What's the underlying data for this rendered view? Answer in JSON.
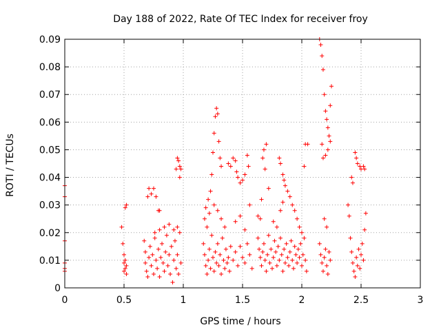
{
  "chart_data": {
    "type": "scatter",
    "title": "Day 188 of 2022, Rate Of TEC Index for receiver froy",
    "xlabel": "GPS time / hours",
    "ylabel": "ROTI / TECUs",
    "xlim": [
      0,
      3
    ],
    "ylim": [
      0,
      0.09
    ],
    "x_ticks": [
      "0",
      "0.5",
      "1",
      "1.5",
      "2",
      "2.5",
      "3"
    ],
    "y_ticks": [
      "0",
      "0.01",
      "0.02",
      "0.03",
      "0.04",
      "0.05",
      "0.06",
      "0.07",
      "0.08",
      "0.09"
    ],
    "grid": true,
    "marker": "plus",
    "color": "#ff0000",
    "series": [
      {
        "points": [
          [
            0.0,
            0.037
          ],
          [
            0.0,
            0.033
          ],
          [
            0.0,
            0.017
          ],
          [
            0.0,
            0.009
          ],
          [
            0.0,
            0.007
          ],
          [
            0.0,
            0.006
          ],
          [
            0.48,
            0.022
          ],
          [
            0.49,
            0.016
          ],
          [
            0.5,
            0.012
          ],
          [
            0.5,
            0.009
          ],
          [
            0.51,
            0.007
          ],
          [
            0.5,
            0.006
          ],
          [
            0.52,
            0.005
          ],
          [
            0.51,
            0.01
          ],
          [
            0.52,
            0.008
          ],
          [
            0.52,
            0.03
          ],
          [
            0.51,
            0.029
          ],
          [
            0.67,
            0.017
          ],
          [
            0.68,
            0.013
          ],
          [
            0.68,
            0.009
          ],
          [
            0.69,
            0.006
          ],
          [
            0.7,
            0.004
          ],
          [
            0.71,
            0.011
          ],
          [
            0.72,
            0.015
          ],
          [
            0.73,
            0.008
          ],
          [
            0.74,
            0.012
          ],
          [
            0.75,
            0.005
          ],
          [
            0.76,
            0.018
          ],
          [
            0.77,
            0.01
          ],
          [
            0.78,
            0.007
          ],
          [
            0.79,
            0.014
          ],
          [
            0.8,
            0.004
          ],
          [
            0.81,
            0.011
          ],
          [
            0.82,
            0.016
          ],
          [
            0.83,
            0.009
          ],
          [
            0.84,
            0.006
          ],
          [
            0.85,
            0.013
          ],
          [
            0.86,
            0.019
          ],
          [
            0.87,
            0.008
          ],
          [
            0.88,
            0.012
          ],
          [
            0.89,
            0.005
          ],
          [
            0.9,
            0.015
          ],
          [
            0.91,
            0.002
          ],
          [
            0.92,
            0.01
          ],
          [
            0.93,
            0.017
          ],
          [
            0.94,
            0.007
          ],
          [
            0.95,
            0.012
          ],
          [
            0.96,
            0.005
          ],
          [
            0.97,
            0.02
          ],
          [
            0.98,
            0.009
          ],
          [
            0.7,
            0.033
          ],
          [
            0.71,
            0.036
          ],
          [
            0.73,
            0.034
          ],
          [
            0.75,
            0.036
          ],
          [
            0.77,
            0.033
          ],
          [
            0.79,
            0.028
          ],
          [
            0.8,
            0.028
          ],
          [
            0.76,
            0.02
          ],
          [
            0.8,
            0.021
          ],
          [
            0.84,
            0.022
          ],
          [
            0.88,
            0.023
          ],
          [
            0.92,
            0.021
          ],
          [
            0.95,
            0.022
          ],
          [
            0.94,
            0.043
          ],
          [
            0.95,
            0.047
          ],
          [
            0.96,
            0.046
          ],
          [
            0.97,
            0.044
          ],
          [
            0.98,
            0.043
          ],
          [
            0.97,
            0.04
          ],
          [
            1.17,
            0.016
          ],
          [
            1.18,
            0.012
          ],
          [
            1.19,
            0.008
          ],
          [
            1.2,
            0.005
          ],
          [
            1.21,
            0.01
          ],
          [
            1.22,
            0.014
          ],
          [
            1.23,
            0.007
          ],
          [
            1.24,
            0.019
          ],
          [
            1.25,
            0.011
          ],
          [
            1.26,
            0.006
          ],
          [
            1.27,
            0.013
          ],
          [
            1.28,
            0.009
          ],
          [
            1.29,
            0.016
          ],
          [
            1.3,
            0.008
          ],
          [
            1.31,
            0.012
          ],
          [
            1.32,
            0.005
          ],
          [
            1.33,
            0.018
          ],
          [
            1.34,
            0.01
          ],
          [
            1.35,
            0.007
          ],
          [
            1.36,
            0.014
          ],
          [
            1.37,
            0.009
          ],
          [
            1.38,
            0.011
          ],
          [
            1.39,
            0.006
          ],
          [
            1.4,
            0.015
          ],
          [
            1.18,
            0.025
          ],
          [
            1.19,
            0.029
          ],
          [
            1.2,
            0.022
          ],
          [
            1.21,
            0.032
          ],
          [
            1.22,
            0.027
          ],
          [
            1.23,
            0.035
          ],
          [
            1.24,
            0.041
          ],
          [
            1.25,
            0.049
          ],
          [
            1.26,
            0.056
          ],
          [
            1.27,
            0.062
          ],
          [
            1.28,
            0.065
          ],
          [
            1.29,
            0.063
          ],
          [
            1.3,
            0.053
          ],
          [
            1.31,
            0.047
          ],
          [
            1.32,
            0.044
          ],
          [
            1.26,
            0.03
          ],
          [
            1.29,
            0.028
          ],
          [
            1.32,
            0.025
          ],
          [
            1.35,
            0.022
          ],
          [
            1.38,
            0.045
          ],
          [
            1.4,
            0.044
          ],
          [
            1.42,
            0.047
          ],
          [
            1.44,
            0.046
          ],
          [
            1.45,
            0.042
          ],
          [
            1.46,
            0.04
          ],
          [
            1.48,
            0.038
          ],
          [
            1.5,
            0.039
          ],
          [
            1.52,
            0.041
          ],
          [
            1.54,
            0.048
          ],
          [
            1.55,
            0.044
          ],
          [
            1.42,
            0.01
          ],
          [
            1.44,
            0.013
          ],
          [
            1.46,
            0.008
          ],
          [
            1.48,
            0.015
          ],
          [
            1.5,
            0.011
          ],
          [
            1.52,
            0.009
          ],
          [
            1.54,
            0.016
          ],
          [
            1.56,
            0.012
          ],
          [
            1.58,
            0.007
          ],
          [
            1.44,
            0.024
          ],
          [
            1.48,
            0.026
          ],
          [
            1.52,
            0.021
          ],
          [
            1.56,
            0.03
          ],
          [
            1.63,
            0.018
          ],
          [
            1.64,
            0.014
          ],
          [
            1.65,
            0.011
          ],
          [
            1.66,
            0.008
          ],
          [
            1.67,
            0.013
          ],
          [
            1.68,
            0.016
          ],
          [
            1.69,
            0.01
          ],
          [
            1.7,
            0.006
          ],
          [
            1.71,
            0.012
          ],
          [
            1.72,
            0.019
          ],
          [
            1.73,
            0.009
          ],
          [
            1.74,
            0.014
          ],
          [
            1.75,
            0.007
          ],
          [
            1.76,
            0.011
          ],
          [
            1.77,
            0.017
          ],
          [
            1.78,
            0.013
          ],
          [
            1.79,
            0.008
          ],
          [
            1.8,
            0.015
          ],
          [
            1.81,
            0.01
          ],
          [
            1.82,
            0.018
          ],
          [
            1.83,
            0.012
          ],
          [
            1.84,
            0.006
          ],
          [
            1.85,
            0.014
          ],
          [
            1.86,
            0.009
          ],
          [
            1.87,
            0.016
          ],
          [
            1.88,
            0.011
          ],
          [
            1.89,
            0.008
          ],
          [
            1.9,
            0.013
          ],
          [
            1.91,
            0.017
          ],
          [
            1.92,
            0.01
          ],
          [
            1.93,
            0.007
          ],
          [
            1.94,
            0.015
          ],
          [
            1.95,
            0.012
          ],
          [
            1.96,
            0.009
          ],
          [
            1.97,
            0.014
          ],
          [
            1.98,
            0.011
          ],
          [
            1.99,
            0.016
          ],
          [
            2.0,
            0.008
          ],
          [
            2.01,
            0.012
          ],
          [
            2.02,
            0.018
          ],
          [
            2.03,
            0.01
          ],
          [
            2.04,
            0.006
          ],
          [
            1.63,
            0.026
          ],
          [
            1.65,
            0.025
          ],
          [
            1.66,
            0.032
          ],
          [
            1.67,
            0.047
          ],
          [
            1.68,
            0.05
          ],
          [
            1.7,
            0.052
          ],
          [
            1.69,
            0.043
          ],
          [
            1.72,
            0.036
          ],
          [
            1.76,
            0.024
          ],
          [
            1.79,
            0.022
          ],
          [
            1.82,
            0.028
          ],
          [
            1.84,
            0.031
          ],
          [
            1.81,
            0.047
          ],
          [
            1.82,
            0.045
          ],
          [
            1.84,
            0.041
          ],
          [
            1.85,
            0.039
          ],
          [
            1.86,
            0.037
          ],
          [
            1.88,
            0.035
          ],
          [
            1.9,
            0.033
          ],
          [
            1.92,
            0.03
          ],
          [
            1.94,
            0.028
          ],
          [
            1.96,
            0.025
          ],
          [
            1.98,
            0.022
          ],
          [
            2.0,
            0.02
          ],
          [
            2.02,
            0.044
          ],
          [
            2.03,
            0.052
          ],
          [
            2.05,
            0.052
          ],
          [
            2.15,
            0.09
          ],
          [
            2.16,
            0.088
          ],
          [
            2.17,
            0.084
          ],
          [
            2.18,
            0.079
          ],
          [
            2.19,
            0.07
          ],
          [
            2.2,
            0.064
          ],
          [
            2.21,
            0.061
          ],
          [
            2.22,
            0.058
          ],
          [
            2.23,
            0.055
          ],
          [
            2.24,
            0.066
          ],
          [
            2.25,
            0.073
          ],
          [
            2.24,
            0.053
          ],
          [
            2.22,
            0.05
          ],
          [
            2.2,
            0.048
          ],
          [
            2.18,
            0.047
          ],
          [
            2.17,
            0.052
          ],
          [
            2.15,
            0.016
          ],
          [
            2.16,
            0.012
          ],
          [
            2.17,
            0.009
          ],
          [
            2.18,
            0.006
          ],
          [
            2.19,
            0.011
          ],
          [
            2.2,
            0.014
          ],
          [
            2.21,
            0.008
          ],
          [
            2.22,
            0.005
          ],
          [
            2.23,
            0.013
          ],
          [
            2.24,
            0.01
          ],
          [
            2.19,
            0.025
          ],
          [
            2.21,
            0.022
          ],
          [
            2.39,
            0.03
          ],
          [
            2.4,
            0.026
          ],
          [
            2.41,
            0.018
          ],
          [
            2.42,
            0.013
          ],
          [
            2.43,
            0.009
          ],
          [
            2.44,
            0.006
          ],
          [
            2.45,
            0.004
          ],
          [
            2.46,
            0.011
          ],
          [
            2.47,
            0.008
          ],
          [
            2.48,
            0.014
          ],
          [
            2.49,
            0.007
          ],
          [
            2.5,
            0.012
          ],
          [
            2.51,
            0.016
          ],
          [
            2.52,
            0.01
          ],
          [
            2.53,
            0.021
          ],
          [
            2.54,
            0.027
          ],
          [
            2.42,
            0.04
          ],
          [
            2.43,
            0.038
          ],
          [
            2.45,
            0.049
          ],
          [
            2.46,
            0.047
          ],
          [
            2.47,
            0.045
          ],
          [
            2.49,
            0.044
          ],
          [
            2.5,
            0.043
          ],
          [
            2.52,
            0.044
          ],
          [
            2.53,
            0.043
          ]
        ]
      }
    ]
  }
}
